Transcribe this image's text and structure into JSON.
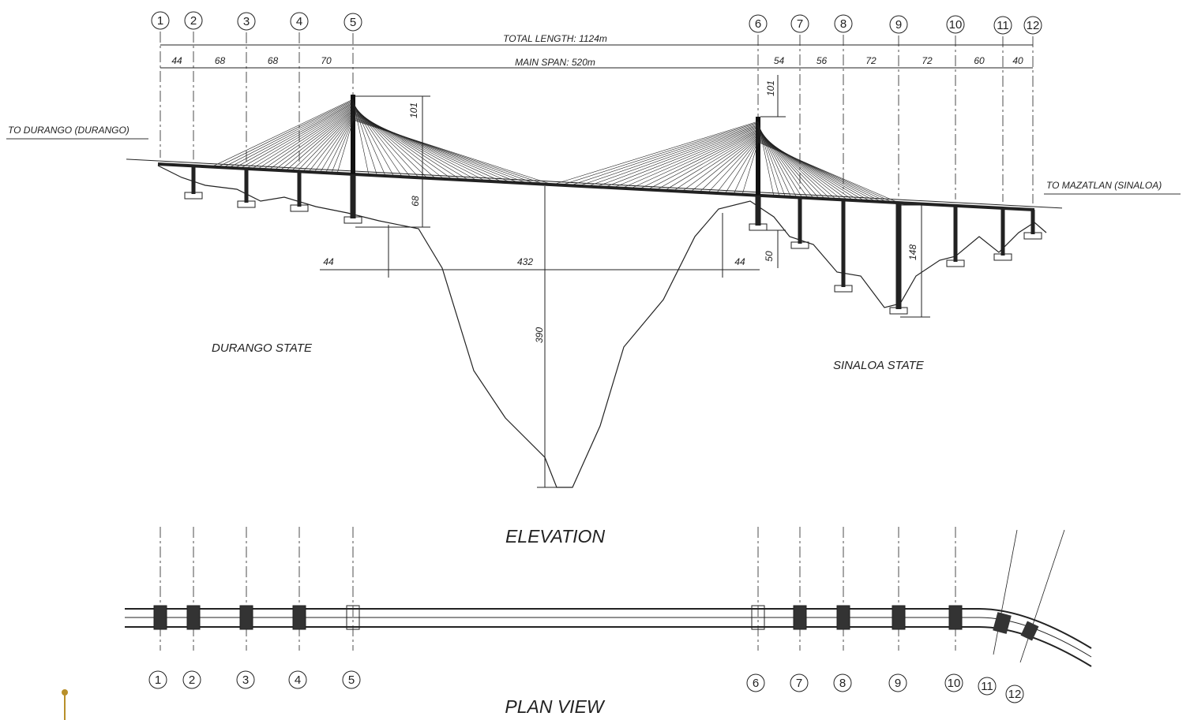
{
  "elevation": {
    "piers": [
      "1",
      "2",
      "3",
      "4",
      "5",
      "6",
      "7",
      "8",
      "9",
      "10",
      "11",
      "12"
    ],
    "total_length": "TOTAL LENGTH: 1124m",
    "main_span": "MAIN SPAN: 520m",
    "spans_left": [
      "44",
      "68",
      "68",
      "70"
    ],
    "spans_right": [
      "54",
      "56",
      "72",
      "72",
      "60",
      "40"
    ],
    "dimensions": {
      "pylon_left_height": "101",
      "pylon_right_height": "101",
      "clearance_left": "68",
      "bottom_left": "44",
      "bottom_mid": "432",
      "bottom_right": "44",
      "depth": "390",
      "right_pier_offset": "50",
      "pier9_height": "148"
    },
    "to_durango": "TO DURANGO (DURANGO)",
    "to_mazatlan": "TO MAZATLAN (SINALOA)",
    "durango_state": "DURANGO STATE",
    "sinaloa_state": "SINALOA STATE",
    "title": "ELEVATION"
  },
  "plan": {
    "piers": [
      "1",
      "2",
      "3",
      "4",
      "5",
      "6",
      "7",
      "8",
      "9",
      "10",
      "11",
      "12"
    ],
    "title": "PLAN VIEW"
  }
}
